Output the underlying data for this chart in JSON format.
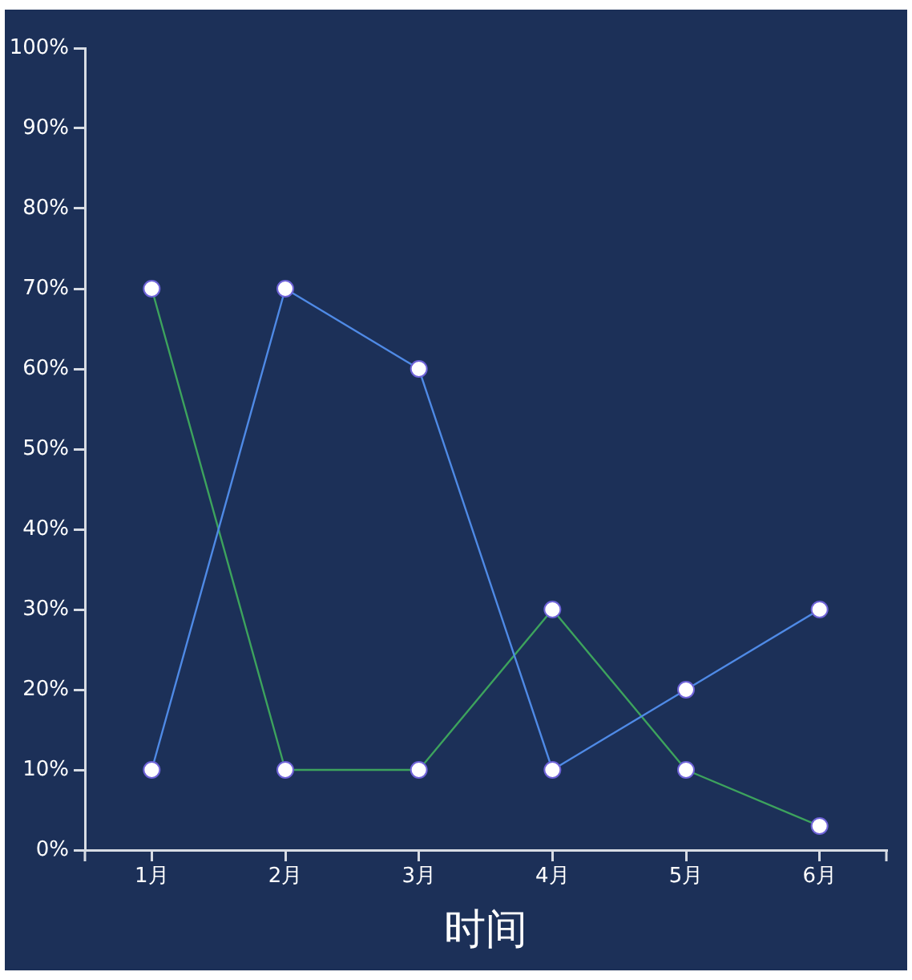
{
  "chart_data": {
    "type": "line",
    "xlabel": "时间",
    "categories": [
      "1月",
      "2月",
      "3月",
      "4月",
      "5月",
      "6月"
    ],
    "series": [
      {
        "color": "#4f8ae6",
        "values": [
          10,
          70,
          60,
          10,
          20,
          30
        ]
      },
      {
        "color": "#3da35d",
        "values": [
          70,
          10,
          10,
          30,
          10,
          3
        ]
      }
    ],
    "ylim": [
      0,
      100
    ],
    "yticks": [
      {
        "value": 0,
        "label": "0%"
      },
      {
        "value": 10,
        "label": "10%"
      },
      {
        "value": 20,
        "label": "20%"
      },
      {
        "value": 30,
        "label": "30%"
      },
      {
        "value": 40,
        "label": "40%"
      },
      {
        "value": 50,
        "label": "50%"
      },
      {
        "value": 60,
        "label": "60%"
      },
      {
        "value": 70,
        "label": "70%"
      },
      {
        "value": 80,
        "label": "80%"
      },
      {
        "value": 90,
        "label": "90%"
      },
      {
        "value": 100,
        "label": "100%"
      }
    ],
    "marker": "circle",
    "grid": false
  }
}
